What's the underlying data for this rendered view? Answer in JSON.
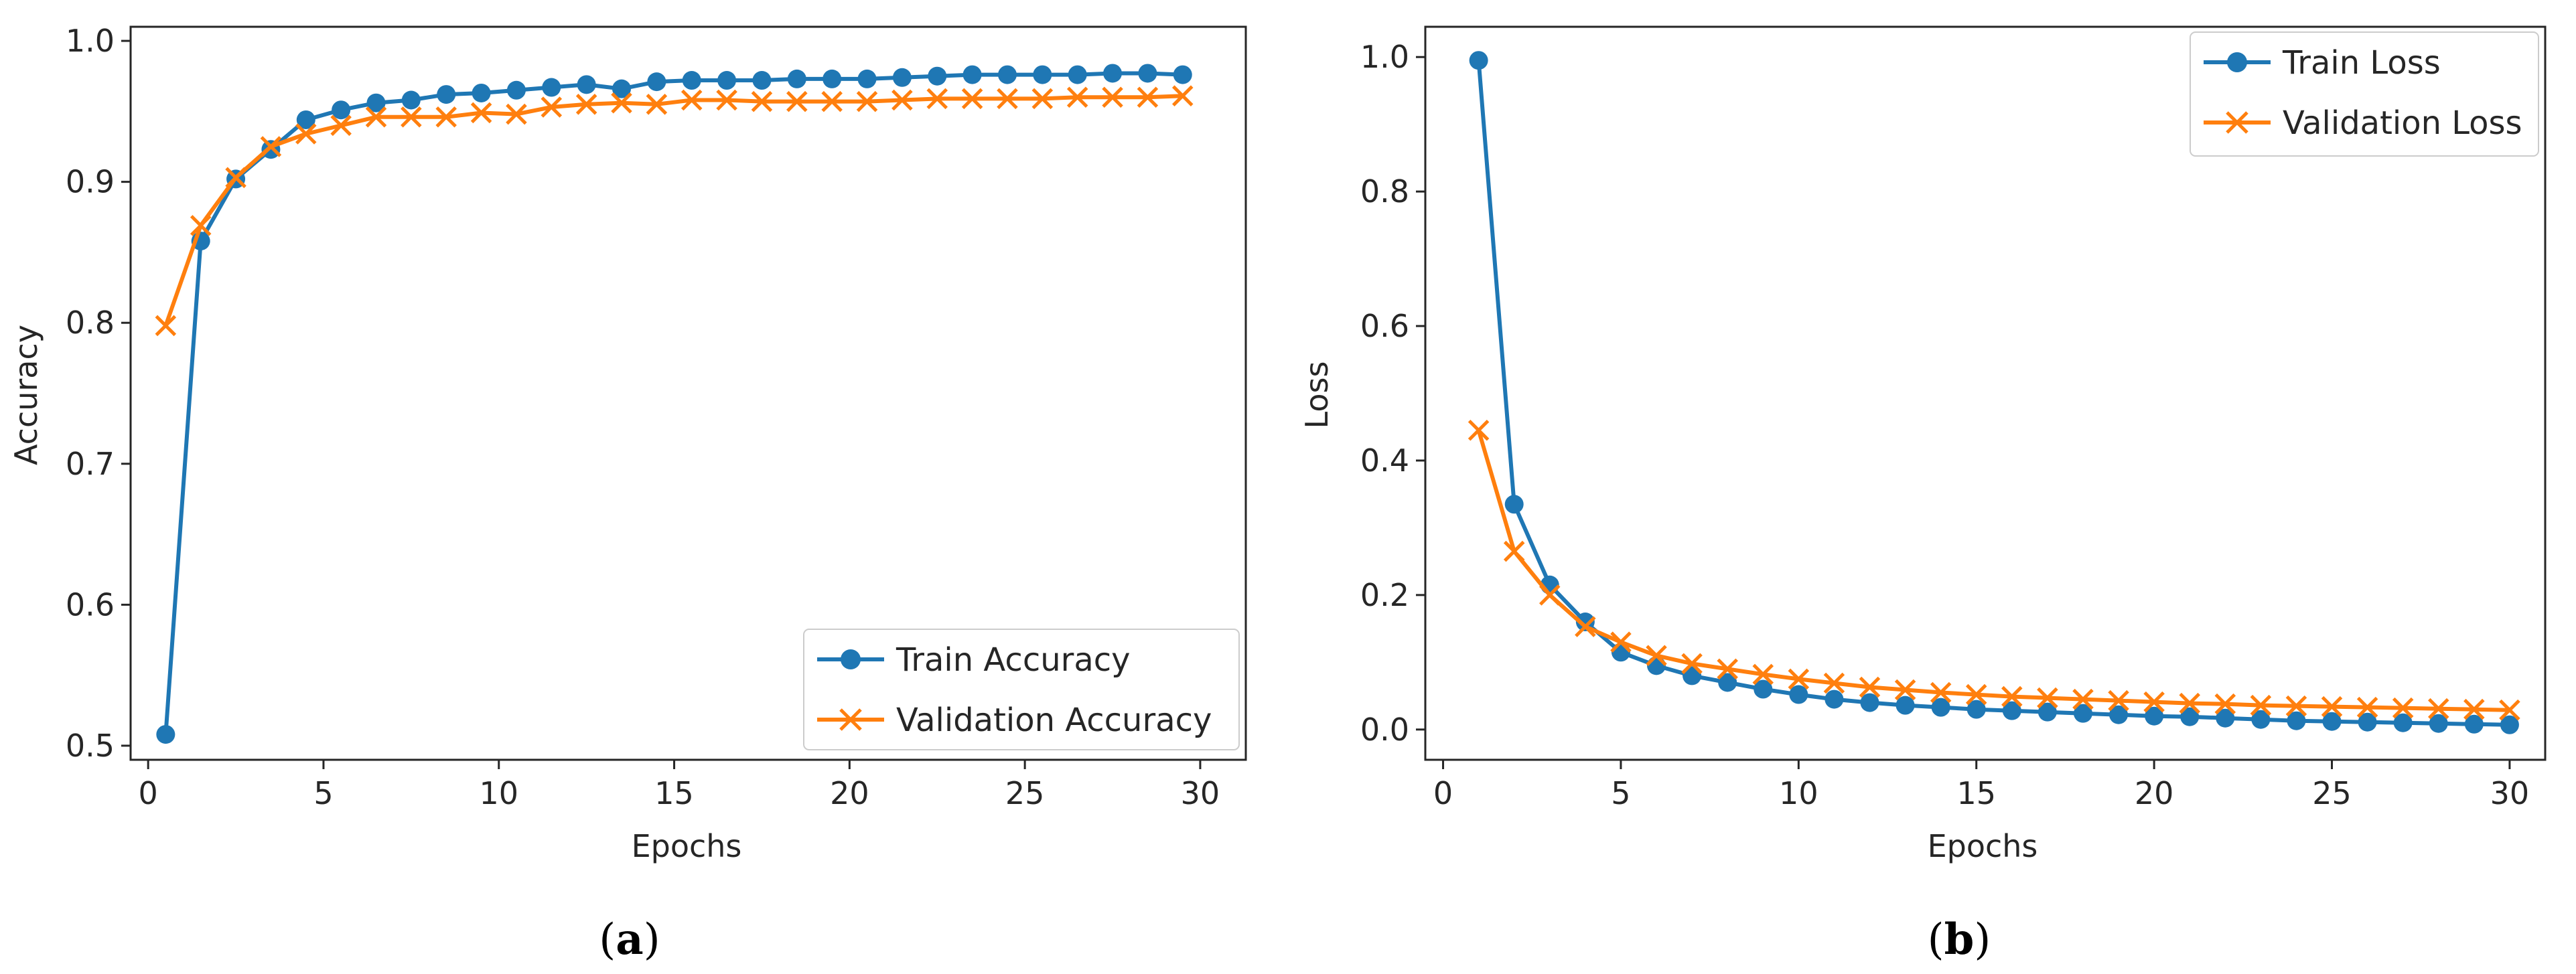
{
  "chart_data": [
    {
      "type": "line",
      "panel": "a",
      "caption": {
        "open": "(",
        "letter": "a",
        "close": ")"
      },
      "xlabel": "Epochs",
      "ylabel": "Accuracy",
      "xlim": [
        -0.5,
        31.3
      ],
      "ylim": [
        0.49,
        1.01
      ],
      "xticks": [
        0,
        5,
        10,
        15,
        20,
        25,
        30
      ],
      "yticks": [
        0.5,
        0.6,
        0.7,
        0.8,
        0.9,
        1.0
      ],
      "xtick_labels": [
        "0",
        "5",
        "10",
        "15",
        "20",
        "25",
        "30"
      ],
      "ytick_labels": [
        "0.5",
        "0.6",
        "0.7",
        "0.8",
        "0.9",
        "1.0"
      ],
      "legend_position": "lower-right",
      "series": [
        {
          "name": "Train Accuracy",
          "color": "#1f77b4",
          "marker": "circle",
          "x": [
            0.5,
            1.5,
            2.5,
            3.5,
            4.5,
            5.5,
            6.5,
            7.5,
            8.5,
            9.5,
            10.5,
            11.5,
            12.5,
            13.5,
            14.5,
            15.5,
            16.5,
            17.5,
            18.5,
            19.5,
            20.5,
            21.5,
            22.5,
            23.5,
            24.5,
            25.5,
            26.5,
            27.5,
            28.5,
            29.5
          ],
          "values": [
            0.508,
            0.858,
            0.902,
            0.923,
            0.944,
            0.951,
            0.956,
            0.958,
            0.962,
            0.963,
            0.965,
            0.967,
            0.969,
            0.966,
            0.971,
            0.972,
            0.972,
            0.972,
            0.973,
            0.973,
            0.973,
            0.974,
            0.975,
            0.976,
            0.976,
            0.976,
            0.976,
            0.977,
            0.977,
            0.976
          ]
        },
        {
          "name": "Validation Accuracy",
          "color": "#ff7f0e",
          "marker": "x",
          "x": [
            0.5,
            1.5,
            2.5,
            3.5,
            4.5,
            5.5,
            6.5,
            7.5,
            8.5,
            9.5,
            10.5,
            11.5,
            12.5,
            13.5,
            14.5,
            15.5,
            16.5,
            17.5,
            18.5,
            19.5,
            20.5,
            21.5,
            22.5,
            23.5,
            24.5,
            25.5,
            26.5,
            27.5,
            28.5,
            29.5
          ],
          "values": [
            0.798,
            0.869,
            0.903,
            0.925,
            0.934,
            0.94,
            0.946,
            0.946,
            0.946,
            0.949,
            0.948,
            0.953,
            0.955,
            0.956,
            0.955,
            0.958,
            0.958,
            0.957,
            0.957,
            0.957,
            0.957,
            0.958,
            0.959,
            0.959,
            0.959,
            0.959,
            0.96,
            0.96,
            0.96,
            0.961
          ]
        }
      ]
    },
    {
      "type": "line",
      "panel": "b",
      "caption": {
        "open": "(",
        "letter": "b",
        "close": ")"
      },
      "xlabel": "Epochs",
      "ylabel": "Loss",
      "xlim": [
        -0.5,
        31.0
      ],
      "ylim": [
        -0.045,
        1.045
      ],
      "xticks": [
        0,
        5,
        10,
        15,
        20,
        25,
        30
      ],
      "yticks": [
        0.0,
        0.2,
        0.4,
        0.6,
        0.8,
        1.0
      ],
      "xtick_labels": [
        "0",
        "5",
        "10",
        "15",
        "20",
        "25",
        "30"
      ],
      "ytick_labels": [
        "0.0",
        "0.2",
        "0.4",
        "0.6",
        "0.8",
        "1.0"
      ],
      "legend_position": "upper-right",
      "series": [
        {
          "name": "Train Loss",
          "color": "#1f77b4",
          "marker": "circle",
          "x": [
            1,
            2,
            3,
            4,
            5,
            6,
            7,
            8,
            9,
            10,
            11,
            12,
            13,
            14,
            15,
            16,
            17,
            18,
            19,
            20,
            21,
            22,
            23,
            24,
            25,
            26,
            27,
            28,
            29,
            30
          ],
          "values": [
            0.995,
            0.335,
            0.215,
            0.16,
            0.115,
            0.095,
            0.08,
            0.07,
            0.06,
            0.052,
            0.045,
            0.04,
            0.036,
            0.033,
            0.03,
            0.028,
            0.026,
            0.024,
            0.022,
            0.02,
            0.019,
            0.017,
            0.015,
            0.013,
            0.012,
            0.011,
            0.01,
            0.009,
            0.008,
            0.007
          ]
        },
        {
          "name": "Validation Loss",
          "color": "#ff7f0e",
          "marker": "x",
          "x": [
            1,
            2,
            3,
            4,
            5,
            6,
            7,
            8,
            9,
            10,
            11,
            12,
            13,
            14,
            15,
            16,
            17,
            18,
            19,
            20,
            21,
            22,
            23,
            24,
            25,
            26,
            27,
            28,
            29,
            30
          ],
          "values": [
            0.445,
            0.265,
            0.2,
            0.153,
            0.13,
            0.11,
            0.098,
            0.09,
            0.082,
            0.075,
            0.069,
            0.063,
            0.059,
            0.055,
            0.052,
            0.049,
            0.047,
            0.045,
            0.043,
            0.041,
            0.039,
            0.038,
            0.036,
            0.035,
            0.034,
            0.033,
            0.032,
            0.031,
            0.03,
            0.029
          ]
        }
      ]
    }
  ]
}
